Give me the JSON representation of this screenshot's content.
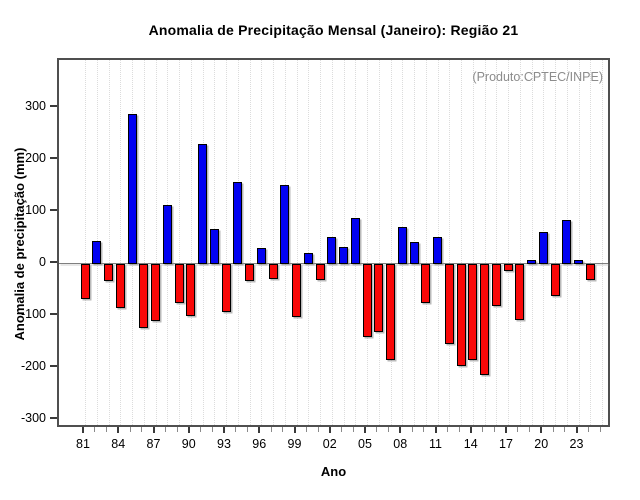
{
  "page": {
    "title": "Anomalia de Precipitação Mensal (Janeiro): Região 21",
    "annotation": "(Produto:CPTEC/INPE)"
  },
  "chart_data": {
    "type": "bar",
    "title": "Anomalia de Precipitação Mensal (Janeiro): Região 21",
    "xlabel": "Ano",
    "ylabel": "Anomalia de precipitação (mm)",
    "annotation": "(Produto:CPTEC/INPE)",
    "legend": "none",
    "grid": "vertical-dotted",
    "ylim": [
      -318,
      392
    ],
    "yticks": [
      300,
      200,
      100,
      0,
      -100,
      -200,
      -300
    ],
    "xtick_labels": [
      "81",
      "84",
      "87",
      "90",
      "93",
      "96",
      "99",
      "02",
      "05",
      "08",
      "11",
      "14",
      "17",
      "20",
      "23"
    ],
    "xtick_label_step": 3,
    "years": [
      1981,
      1982,
      1983,
      1984,
      1985,
      1986,
      1987,
      1988,
      1989,
      1990,
      1991,
      1992,
      1993,
      1994,
      1995,
      1996,
      1997,
      1998,
      1999,
      2000,
      2001,
      2002,
      2003,
      2004,
      2005,
      2006,
      2007,
      2008,
      2009,
      2010,
      2011,
      2012,
      2013,
      2014,
      2015,
      2016,
      2017,
      2018,
      2019,
      2020,
      2021,
      2022,
      2023,
      2024
    ],
    "values": [
      -67,
      44,
      -32,
      -83,
      288,
      -123,
      -109,
      113,
      -74,
      -100,
      230,
      67,
      -92,
      158,
      -32,
      30,
      -28,
      152,
      -101,
      21,
      -30,
      51,
      32,
      88,
      -140,
      -129,
      -183,
      70,
      41,
      -74,
      51,
      -153,
      -195,
      -183,
      -213,
      -79,
      -13,
      -106,
      8,
      61,
      -61,
      85,
      8,
      -29
    ],
    "minor_tick_years_end": 2025,
    "colors": {
      "positive": "#0202f2",
      "negative": "#f90808",
      "bar_border": "#000000",
      "zero_line": "#7f7f7f",
      "annotation_text": "#8c8c8c",
      "frame": "#4f4f4f"
    }
  }
}
